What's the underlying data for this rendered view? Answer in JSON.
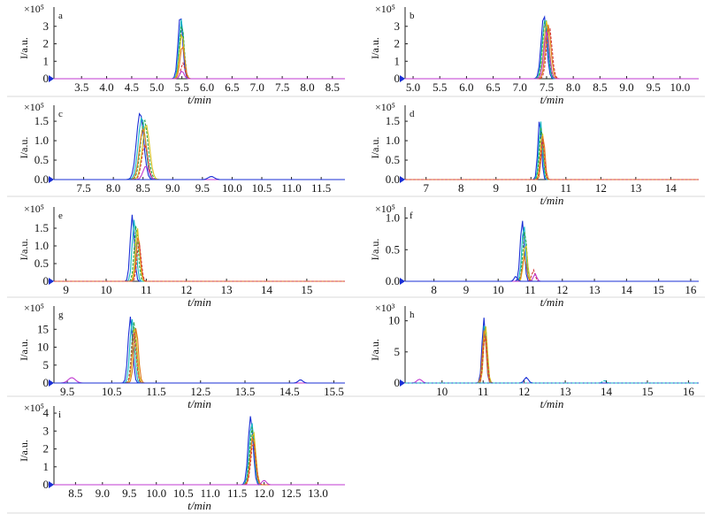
{
  "series_colors": [
    "#1a2fd6",
    "#15b8c4",
    "#2aa84a",
    "#d8c21e",
    "#e07a1e",
    "#d63a3a",
    "#c03ad0"
  ],
  "chart_data": [
    {
      "type": "line",
      "panel": "a",
      "title": "",
      "xlabel": "t/min",
      "ylabel": "I/a.u.",
      "scale_label": "×10⁵",
      "xlim": [
        2.95,
        8.75
      ],
      "ylim": [
        0,
        3.9
      ],
      "xticks": [
        3.5,
        4.0,
        4.5,
        5.0,
        5.5,
        6.0,
        6.5,
        7.0,
        7.5,
        8.0,
        8.5
      ],
      "xtick_labels": [
        "3.5",
        "4.0",
        "4.5",
        "5.0",
        "5.5",
        "6.0",
        "6.5",
        "7.0",
        "7.5",
        "8.0",
        "8.5"
      ],
      "yticks": [
        0,
        1,
        2,
        3
      ],
      "ytick_labels": [
        "0",
        "1",
        "2",
        "3"
      ],
      "peaks": [
        {
          "rt": 5.47,
          "height": 3.68,
          "width": 0.045
        },
        {
          "rt": 5.49,
          "height": 3.4,
          "width": 0.045
        },
        {
          "rt": 5.5,
          "height": 3.1,
          "width": 0.045
        },
        {
          "rt": 5.5,
          "height": 2.6,
          "width": 0.045
        },
        {
          "rt": 5.51,
          "height": 1.9,
          "width": 0.045
        },
        {
          "rt": 5.52,
          "height": 0.9,
          "width": 0.04
        },
        {
          "rt": 5.5,
          "height": 0.45,
          "width": 0.04
        }
      ]
    },
    {
      "type": "line",
      "panel": "b",
      "title": "",
      "xlabel": "t/min",
      "ylabel": "I/a.u.",
      "scale_label": "×10⁵",
      "xlim": [
        4.85,
        10.35
      ],
      "ylim": [
        0,
        3.9
      ],
      "xticks": [
        5.0,
        5.5,
        6.0,
        6.5,
        7.0,
        7.5,
        8.0,
        8.5,
        9.0,
        9.5,
        10.0
      ],
      "xtick_labels": [
        "5.0",
        "5.5",
        "6.0",
        "6.5",
        "7.0",
        "7.5",
        "8.0",
        "8.5",
        "9.0",
        "9.5",
        "10.0"
      ],
      "yticks": [
        0,
        1,
        2,
        3
      ],
      "ytick_labels": [
        "0",
        "1",
        "2",
        "3"
      ],
      "peaks": [
        {
          "rt": 7.45,
          "height": 3.65,
          "width": 0.05
        },
        {
          "rt": 7.47,
          "height": 3.4,
          "width": 0.05
        },
        {
          "rt": 7.48,
          "height": 3.5,
          "width": 0.05
        },
        {
          "rt": 7.5,
          "height": 3.3,
          "width": 0.05
        },
        {
          "rt": 7.53,
          "height": 3.1,
          "width": 0.05
        },
        {
          "rt": 7.55,
          "height": 3.0,
          "width": 0.05
        },
        {
          "rt": 7.5,
          "height": 2.7,
          "width": 0.05
        }
      ]
    },
    {
      "type": "line",
      "panel": "c",
      "title": "",
      "xlabel": "",
      "ylabel": "I/a.u.",
      "scale_label": "×10⁵",
      "xlim": [
        7.0,
        11.9
      ],
      "ylim": [
        0,
        1.82
      ],
      "xticks": [
        7.5,
        8.0,
        8.5,
        9.0,
        9.5,
        10.0,
        10.5,
        11.0,
        11.5
      ],
      "xtick_labels": [
        "7.5",
        "8.0",
        "8.5",
        "9.0",
        "9.5",
        "10.0",
        "10.5",
        "11.0",
        "11.5"
      ],
      "yticks": [
        0,
        0.5,
        1.0,
        1.5
      ],
      "ytick_labels": [
        "0.0",
        "0.5",
        "1.0",
        "1.5"
      ],
      "peaks": [
        {
          "rt": 8.45,
          "height": 1.72,
          "width": 0.06
        },
        {
          "rt": 8.48,
          "height": 1.6,
          "width": 0.06
        },
        {
          "rt": 8.52,
          "height": 1.55,
          "width": 0.06
        },
        {
          "rt": 8.55,
          "height": 1.42,
          "width": 0.06
        },
        {
          "rt": 8.5,
          "height": 1.3,
          "width": 0.06
        },
        {
          "rt": 8.53,
          "height": 0.9,
          "width": 0.05
        },
        {
          "rt": 8.55,
          "height": 0.35,
          "width": 0.05
        },
        {
          "rt": 9.65,
          "height": 0.08,
          "width": 0.05
        }
      ]
    },
    {
      "type": "line",
      "panel": "d",
      "title": "",
      "xlabel": "t/min",
      "ylabel": "I/a.u.",
      "scale_label": "×10⁵",
      "xlim": [
        6.4,
        14.8
      ],
      "ylim": [
        0,
        1.82
      ],
      "xticks": [
        7,
        8,
        9,
        10,
        11,
        12,
        13,
        14
      ],
      "xtick_labels": [
        "7",
        "8",
        "9",
        "10",
        "11",
        "12",
        "13",
        "14"
      ],
      "yticks": [
        0,
        0.5,
        1.0,
        1.5
      ],
      "ytick_labels": [
        "0.0",
        "0.5",
        "1.0",
        "1.5"
      ],
      "peaks": [
        {
          "rt": 10.25,
          "height": 1.58,
          "width": 0.05
        },
        {
          "rt": 10.28,
          "height": 1.5,
          "width": 0.05
        },
        {
          "rt": 10.3,
          "height": 1.4,
          "width": 0.05
        },
        {
          "rt": 10.32,
          "height": 1.25,
          "width": 0.05
        },
        {
          "rt": 10.35,
          "height": 1.15,
          "width": 0.05
        },
        {
          "rt": 10.33,
          "height": 1.05,
          "width": 0.05
        }
      ]
    },
    {
      "type": "line",
      "panel": "e",
      "title": "",
      "xlabel": "t/min",
      "ylabel": "I/a.u.",
      "scale_label": "×10⁵",
      "xlim": [
        8.7,
        15.95
      ],
      "ylim": [
        0,
        2.0
      ],
      "xticks": [
        9,
        10,
        11,
        12,
        13,
        14,
        15
      ],
      "xtick_labels": [
        "9",
        "10",
        "11",
        "12",
        "13",
        "14",
        "15"
      ],
      "yticks": [
        0,
        0.5,
        1.0,
        1.5
      ],
      "ytick_labels": [
        "0",
        "0.5",
        "1.0",
        "1.5"
      ],
      "peaks": [
        {
          "rt": 10.65,
          "height": 1.88,
          "width": 0.05
        },
        {
          "rt": 10.7,
          "height": 1.75,
          "width": 0.05
        },
        {
          "rt": 10.75,
          "height": 1.6,
          "width": 0.05
        },
        {
          "rt": 10.78,
          "height": 1.5,
          "width": 0.05
        },
        {
          "rt": 10.8,
          "height": 1.3,
          "width": 0.05
        },
        {
          "rt": 10.82,
          "height": 1.1,
          "width": 0.05
        }
      ]
    },
    {
      "type": "line",
      "panel": "f",
      "title": "",
      "xlabel": "t/min",
      "ylabel": "I/a.u.",
      "scale_label": "×10⁵",
      "xlim": [
        7.1,
        16.25
      ],
      "ylim": [
        0,
        1.12
      ],
      "xticks": [
        8,
        9,
        10,
        11,
        12,
        13,
        14,
        15,
        16
      ],
      "xtick_labels": [
        "8",
        "9",
        "10",
        "11",
        "12",
        "13",
        "14",
        "15",
        "16"
      ],
      "yticks": [
        0,
        0.5,
        1.0
      ],
      "ytick_labels": [
        "0.0",
        "0.5",
        "1.0"
      ],
      "peaks": [
        {
          "rt": 10.75,
          "height": 0.97,
          "width": 0.06
        },
        {
          "rt": 10.8,
          "height": 0.9,
          "width": 0.06
        },
        {
          "rt": 10.83,
          "height": 0.8,
          "width": 0.06
        },
        {
          "rt": 10.85,
          "height": 0.6,
          "width": 0.06
        },
        {
          "rt": 10.82,
          "height": 0.4,
          "width": 0.06
        },
        {
          "rt": 11.1,
          "height": 0.18,
          "width": 0.05
        },
        {
          "rt": 11.15,
          "height": 0.12,
          "width": 0.05
        },
        {
          "rt": 10.55,
          "height": 0.08,
          "width": 0.05
        }
      ]
    },
    {
      "type": "line",
      "panel": "g",
      "title": "",
      "xlabel": "t/min",
      "ylabel": "I/a.u.",
      "scale_label": "×10⁵",
      "xlim": [
        9.2,
        15.75
      ],
      "ylim": [
        0,
        20.5
      ],
      "xticks": [
        9.5,
        10.5,
        11.5,
        12.5,
        13.5,
        14.5,
        15.5
      ],
      "xtick_labels": [
        "9.5",
        "10.5",
        "11.5",
        "12.5",
        "13.5",
        "14.5",
        "15.5"
      ],
      "yticks": [
        0,
        5,
        10,
        15
      ],
      "ytick_labels": [
        "0",
        "5",
        "10",
        "15"
      ],
      "peaks": [
        {
          "rt": 10.92,
          "height": 18.5,
          "width": 0.05
        },
        {
          "rt": 10.96,
          "height": 17.8,
          "width": 0.05
        },
        {
          "rt": 11.0,
          "height": 17.0,
          "width": 0.05
        },
        {
          "rt": 11.02,
          "height": 16.0,
          "width": 0.05
        },
        {
          "rt": 11.05,
          "height": 15.5,
          "width": 0.05
        },
        {
          "rt": 11.0,
          "height": 14.0,
          "width": 0.05
        },
        {
          "rt": 9.6,
          "height": 1.5,
          "width": 0.08
        },
        {
          "rt": 14.75,
          "height": 0.9,
          "width": 0.05
        }
      ]
    },
    {
      "type": "line",
      "panel": "h",
      "title": "",
      "xlabel": "t/min",
      "ylabel": "I/a.u.",
      "scale_label": "×10³",
      "xlim": [
        9.1,
        16.25
      ],
      "ylim": [
        0,
        11.8
      ],
      "xticks": [
        10,
        11,
        12,
        13,
        14,
        15,
        16
      ],
      "xtick_labels": [
        "10",
        "11",
        "12",
        "13",
        "14",
        "15",
        "16"
      ],
      "yticks": [
        0,
        5,
        10
      ],
      "ytick_labels": [
        "0",
        "5",
        "10"
      ],
      "peaks": [
        {
          "rt": 11.02,
          "height": 10.5,
          "width": 0.045
        },
        {
          "rt": 11.04,
          "height": 10.0,
          "width": 0.045
        },
        {
          "rt": 11.05,
          "height": 9.6,
          "width": 0.045
        },
        {
          "rt": 11.06,
          "height": 9.2,
          "width": 0.045
        },
        {
          "rt": 11.03,
          "height": 8.6,
          "width": 0.045
        },
        {
          "rt": 11.05,
          "height": 8.0,
          "width": 0.045
        },
        {
          "rt": 9.45,
          "height": 0.6,
          "width": 0.06
        },
        {
          "rt": 12.05,
          "height": 0.9,
          "width": 0.05
        },
        {
          "rt": 13.95,
          "height": 0.4,
          "width": 0.04
        }
      ]
    },
    {
      "type": "line",
      "panel": "i",
      "title": "",
      "xlabel": "t/min",
      "ylabel": "I/a.u.",
      "scale_label": "×10⁵",
      "xlim": [
        8.1,
        13.5
      ],
      "ylim": [
        0,
        4.2
      ],
      "xticks": [
        8.5,
        9.0,
        9.5,
        10.0,
        10.5,
        11.0,
        11.5,
        12.0,
        12.5,
        13.0
      ],
      "xtick_labels": [
        "8.5",
        "9.0",
        "9.5",
        "10.0",
        "10.5",
        "11.0",
        "11.5",
        "12.0",
        "12.5",
        "13.0"
      ],
      "yticks": [
        0,
        1,
        2,
        3,
        4
      ],
      "ytick_labels": [
        "0",
        "1",
        "2",
        "3",
        "4"
      ],
      "peaks": [
        {
          "rt": 11.75,
          "height": 3.85,
          "width": 0.045
        },
        {
          "rt": 11.77,
          "height": 3.5,
          "width": 0.045
        },
        {
          "rt": 11.78,
          "height": 3.2,
          "width": 0.045
        },
        {
          "rt": 11.8,
          "height": 3.0,
          "width": 0.045
        },
        {
          "rt": 11.79,
          "height": 2.7,
          "width": 0.045
        },
        {
          "rt": 11.8,
          "height": 2.4,
          "width": 0.045
        },
        {
          "rt": 12.0,
          "height": 0.25,
          "width": 0.04
        }
      ]
    }
  ]
}
